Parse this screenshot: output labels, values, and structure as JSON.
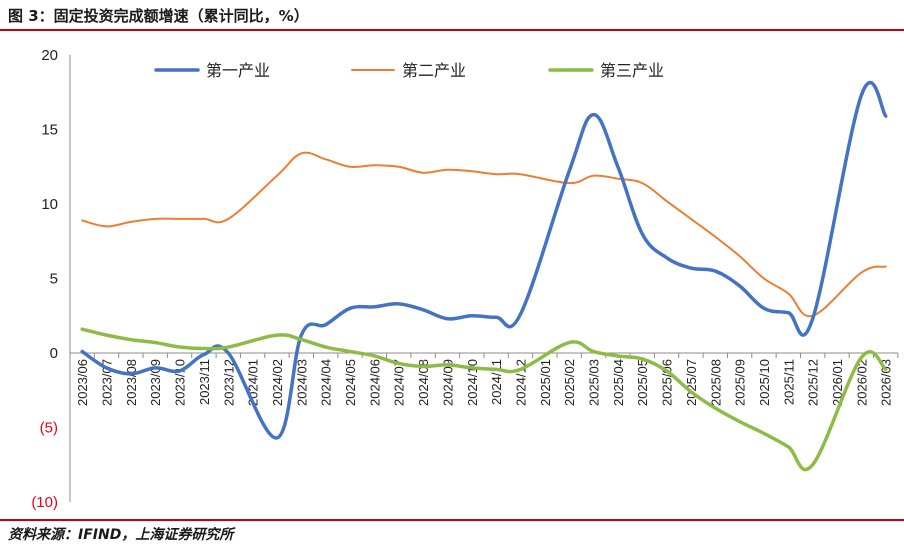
{
  "header": {
    "title": "图 3：固定投资完成额增速（累计同比，%）"
  },
  "footer": {
    "source": "资料来源：IFIND，上海证券研究所"
  },
  "chart_data": {
    "type": "line",
    "title": "",
    "xlabel": "",
    "ylabel": "",
    "ylim": [
      -10,
      20
    ],
    "yticks": [
      {
        "value": 20,
        "label": "20"
      },
      {
        "value": 15,
        "label": "15"
      },
      {
        "value": 10,
        "label": "10"
      },
      {
        "value": 5,
        "label": "5"
      },
      {
        "value": 0,
        "label": "0"
      },
      {
        "value": -5,
        "label": "(5)"
      },
      {
        "value": -10,
        "label": "(10)"
      }
    ],
    "negative_tick_color": "#e8001c",
    "grid": false,
    "legend_position": "top",
    "categories": [
      "2023/06",
      "2023/07",
      "2023/08",
      "2023/09",
      "2023/10",
      "2023/11",
      "2023/12",
      "2024/01",
      "2024/02",
      "2024/03",
      "2024/04",
      "2024/05",
      "2024/06",
      "2024/07",
      "2024/08",
      "2024/09",
      "2024/10",
      "2024/11",
      "2024/12",
      "2025/01",
      "2025/02",
      "2025/03",
      "2025/04",
      "2025/05",
      "2025/06",
      "2025/07",
      "2025/08",
      "2025/09",
      "2025/10",
      "2025/11",
      "2025/12",
      "2026/01",
      "2026/02",
      "2026/03"
    ],
    "series": [
      {
        "name": "第一产业",
        "color": "#4472c4",
        "values": [
          0.1,
          -1.0,
          -1.4,
          -1.0,
          -1.2,
          -0.1,
          0.0,
          null,
          -5.7,
          1.2,
          1.9,
          3.0,
          3.1,
          3.3,
          2.9,
          2.3,
          2.5,
          2.4,
          2.6,
          null,
          12.2,
          16.0,
          12.5,
          8.0,
          6.4,
          5.7,
          5.5,
          4.5,
          3.0,
          2.7,
          2.3,
          null,
          17.3,
          15.9
        ]
      },
      {
        "name": "第二产业",
        "color": "#ed7d31",
        "values": [
          8.9,
          8.5,
          8.8,
          9.0,
          9.0,
          9.0,
          9.0,
          null,
          11.9,
          13.4,
          13.0,
          12.5,
          12.6,
          12.5,
          12.1,
          12.3,
          12.2,
          12.0,
          12.0,
          null,
          11.4,
          11.9,
          11.7,
          11.4,
          10.2,
          9.0,
          7.8,
          6.5,
          5.0,
          4.0,
          2.5,
          null,
          5.4,
          5.8
        ]
      },
      {
        "name": "第三产业",
        "color": "#8cbc46",
        "values": [
          1.6,
          1.2,
          0.9,
          0.7,
          0.4,
          0.3,
          0.4,
          null,
          1.2,
          0.9,
          0.4,
          0.1,
          -0.2,
          -0.7,
          -0.9,
          -0.8,
          -1.0,
          -1.1,
          -1.1,
          null,
          0.7,
          0.1,
          -0.2,
          -0.4,
          -1.2,
          -2.6,
          -3.7,
          -4.6,
          -5.4,
          -6.3,
          -7.5,
          null,
          -0.3,
          -1.1
        ]
      }
    ]
  }
}
